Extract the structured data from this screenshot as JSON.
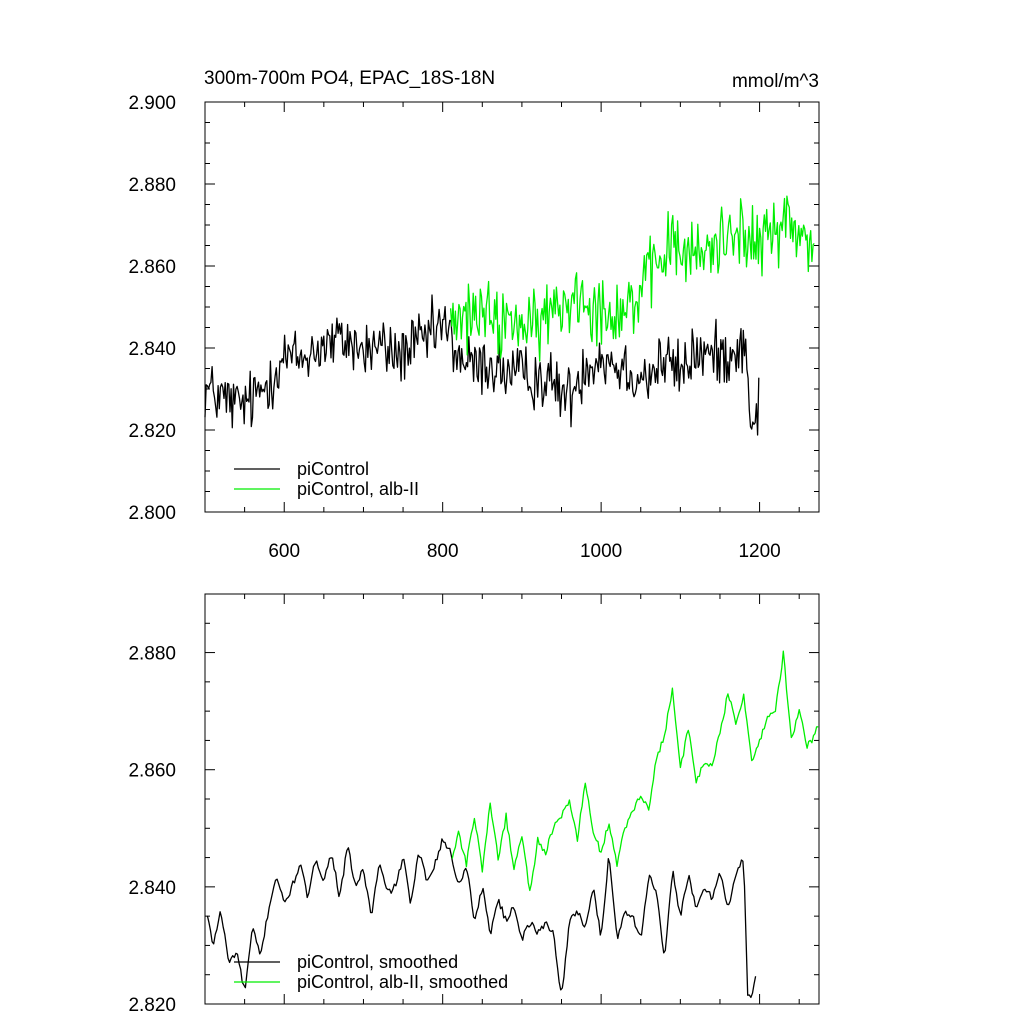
{
  "title_left": "300m-700m PO4, EPAC_18S-18N",
  "title_right": "mmol/m^3",
  "colors": {
    "control": "#000000",
    "experiment": "#00ee00",
    "axis": "#000000"
  },
  "chart_data": [
    {
      "type": "line",
      "title": "300m-700m PO4, EPAC_18S-18N",
      "units": "mmol/m^3",
      "xlim": [
        500,
        1275
      ],
      "ylim": [
        2.8,
        2.9
      ],
      "xticks": [
        600,
        800,
        1000,
        1200
      ],
      "xtick_labels": [
        "600",
        "800",
        "1000",
        "1200"
      ],
      "yticks": [
        2.8,
        2.82,
        2.84,
        2.86,
        2.88,
        2.9
      ],
      "ytick_labels": [
        "2.800",
        "2.820",
        "2.840",
        "2.860",
        "2.880",
        "2.900"
      ],
      "legend_position": "bottom-left",
      "series": [
        {
          "name": "piControl",
          "color": "#000000",
          "x": [
            500,
            520,
            540,
            560,
            580,
            600,
            620,
            640,
            660,
            680,
            700,
            720,
            740,
            760,
            780,
            800,
            820,
            840,
            860,
            880,
            900,
            920,
            940,
            960,
            980,
            1000,
            1020,
            1040,
            1060,
            1080,
            1100,
            1120,
            1140,
            1160,
            1180,
            1190,
            1200
          ],
          "y": [
            2.83,
            2.828,
            2.826,
            2.827,
            2.832,
            2.838,
            2.837,
            2.84,
            2.841,
            2.842,
            2.839,
            2.841,
            2.838,
            2.84,
            2.842,
            2.846,
            2.838,
            2.835,
            2.836,
            2.834,
            2.833,
            2.833,
            2.831,
            2.828,
            2.836,
            2.838,
            2.836,
            2.834,
            2.833,
            2.837,
            2.834,
            2.839,
            2.838,
            2.839,
            2.841,
            2.822,
            2.826
          ],
          "noise": 0.0065
        },
        {
          "name": "piControl, alb-II",
          "color": "#00ee00",
          "x": [
            810,
            830,
            850,
            870,
            890,
            910,
            930,
            950,
            970,
            990,
            1010,
            1030,
            1050,
            1070,
            1090,
            1110,
            1130,
            1150,
            1170,
            1190,
            1210,
            1230,
            1250,
            1270
          ],
          "y": [
            2.846,
            2.847,
            2.849,
            2.845,
            2.848,
            2.843,
            2.848,
            2.85,
            2.854,
            2.851,
            2.849,
            2.85,
            2.853,
            2.86,
            2.866,
            2.862,
            2.863,
            2.866,
            2.871,
            2.864,
            2.867,
            2.872,
            2.867,
            2.866
          ],
          "noise": 0.0075
        }
      ]
    },
    {
      "type": "line",
      "xlim": [
        500,
        1275
      ],
      "ylim": [
        2.82,
        2.89
      ],
      "xticks": [
        600,
        800,
        1000,
        1200
      ],
      "yticks": [
        2.82,
        2.84,
        2.86,
        2.88
      ],
      "ytick_labels": [
        "2.820",
        "2.840",
        "2.860",
        "2.880"
      ],
      "legend_position": "bottom-left",
      "series": [
        {
          "name": "piControl, smoothed",
          "color": "#000000",
          "x": [
            503,
            510,
            520,
            530,
            540,
            550,
            560,
            570,
            580,
            590,
            600,
            610,
            620,
            630,
            640,
            650,
            660,
            670,
            680,
            690,
            700,
            710,
            720,
            730,
            740,
            750,
            760,
            770,
            780,
            790,
            800,
            810,
            820,
            830,
            840,
            850,
            860,
            870,
            880,
            890,
            900,
            910,
            920,
            930,
            940,
            950,
            960,
            970,
            980,
            990,
            1000,
            1010,
            1020,
            1030,
            1040,
            1050,
            1060,
            1070,
            1080,
            1090,
            1100,
            1110,
            1120,
            1130,
            1140,
            1150,
            1160,
            1170,
            1180,
            1185,
            1190,
            1195
          ],
          "y": [
            2.835,
            2.83,
            2.836,
            2.827,
            2.829,
            2.822,
            2.833,
            2.828,
            2.836,
            2.842,
            2.837,
            2.84,
            2.844,
            2.838,
            2.845,
            2.841,
            2.846,
            2.838,
            2.847,
            2.84,
            2.843,
            2.835,
            2.844,
            2.839,
            2.84,
            2.845,
            2.837,
            2.846,
            2.841,
            2.844,
            2.848,
            2.846,
            2.84,
            2.844,
            2.834,
            2.84,
            2.832,
            2.838,
            2.834,
            2.837,
            2.831,
            2.834,
            2.832,
            2.834,
            2.832,
            2.821,
            2.834,
            2.836,
            2.833,
            2.84,
            2.831,
            2.846,
            2.831,
            2.836,
            2.835,
            2.831,
            2.842,
            2.839,
            2.827,
            2.843,
            2.835,
            2.842,
            2.836,
            2.84,
            2.838,
            2.843,
            2.836,
            2.842,
            2.845,
            2.822,
            2.821,
            2.825
          ]
        },
        {
          "name": "piControl, alb-II, smoothed",
          "color": "#00ee00",
          "x": [
            812,
            820,
            830,
            840,
            850,
            860,
            870,
            880,
            890,
            900,
            910,
            920,
            930,
            940,
            950,
            960,
            970,
            980,
            990,
            1000,
            1010,
            1020,
            1030,
            1040,
            1050,
            1060,
            1070,
            1080,
            1090,
            1100,
            1110,
            1120,
            1130,
            1140,
            1150,
            1160,
            1170,
            1180,
            1190,
            1200,
            1210,
            1220,
            1230,
            1240,
            1250,
            1260,
            1270,
            1275
          ],
          "y": [
            2.845,
            2.849,
            2.844,
            2.852,
            2.843,
            2.854,
            2.845,
            2.852,
            2.843,
            2.849,
            2.839,
            2.848,
            2.846,
            2.85,
            2.852,
            2.855,
            2.848,
            2.858,
            2.849,
            2.846,
            2.851,
            2.844,
            2.85,
            2.853,
            2.856,
            2.853,
            2.862,
            2.866,
            2.874,
            2.86,
            2.867,
            2.858,
            2.861,
            2.861,
            2.866,
            2.873,
            2.868,
            2.873,
            2.861,
            2.865,
            2.869,
            2.87,
            2.88,
            2.865,
            2.87,
            2.864,
            2.866,
            2.868
          ]
        }
      ]
    }
  ]
}
